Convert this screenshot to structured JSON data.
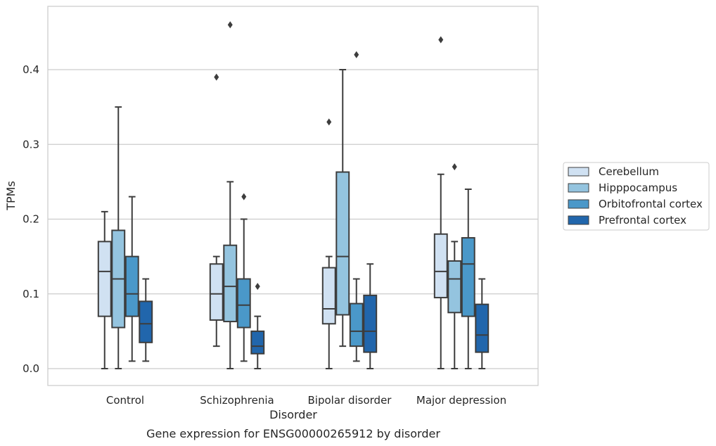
{
  "chart_data": {
    "type": "box",
    "xlabel": "Disorder",
    "ylabel": "TPMs",
    "caption": "Gene expression for ENSG00000265912 by disorder",
    "ylim": [
      -0.022,
      0.483
    ],
    "yticks": [
      0.0,
      0.1,
      0.2,
      0.3,
      0.4
    ],
    "ytick_labels": [
      "0.0",
      "0.1",
      "0.2",
      "0.3",
      "0.4"
    ],
    "grid": "horizontal",
    "legend_position": "right",
    "categories": [
      "Control",
      "Schizophrenia",
      "Bipolar disorder",
      "Major depression"
    ],
    "series": [
      {
        "name": "Cerebellum",
        "color": "#d0e1f2",
        "boxes": [
          {
            "whislo": 0.0,
            "q1": 0.07,
            "med": 0.13,
            "q3": 0.17,
            "whishi": 0.21,
            "fliers": []
          },
          {
            "whislo": 0.03,
            "q1": 0.065,
            "med": 0.1,
            "q3": 0.14,
            "whishi": 0.15,
            "fliers": [
              0.39
            ]
          },
          {
            "whislo": 0.0,
            "q1": 0.06,
            "med": 0.08,
            "q3": 0.135,
            "whishi": 0.15,
            "fliers": [
              0.33
            ]
          },
          {
            "whislo": 0.0,
            "q1": 0.095,
            "med": 0.13,
            "q3": 0.18,
            "whishi": 0.26,
            "fliers": [
              0.44
            ]
          }
        ]
      },
      {
        "name": "Hipppocampus",
        "color": "#94c4df",
        "boxes": [
          {
            "whislo": 0.0,
            "q1": 0.055,
            "med": 0.12,
            "q3": 0.185,
            "whishi": 0.35,
            "fliers": []
          },
          {
            "whislo": 0.0,
            "q1": 0.063,
            "med": 0.11,
            "q3": 0.165,
            "whishi": 0.25,
            "fliers": [
              0.46
            ]
          },
          {
            "whislo": 0.03,
            "q1": 0.072,
            "med": 0.15,
            "q3": 0.263,
            "whishi": 0.4,
            "fliers": []
          },
          {
            "whislo": 0.0,
            "q1": 0.075,
            "med": 0.12,
            "q3": 0.144,
            "whishi": 0.17,
            "fliers": [
              0.27
            ]
          }
        ]
      },
      {
        "name": "Orbitofrontal cortex",
        "color": "#4a98c9",
        "boxes": [
          {
            "whislo": 0.01,
            "q1": 0.07,
            "med": 0.1,
            "q3": 0.15,
            "whishi": 0.23,
            "fliers": []
          },
          {
            "whislo": 0.01,
            "q1": 0.055,
            "med": 0.085,
            "q3": 0.12,
            "whishi": 0.2,
            "fliers": [
              0.23
            ]
          },
          {
            "whislo": 0.01,
            "q1": 0.03,
            "med": 0.05,
            "q3": 0.087,
            "whishi": 0.12,
            "fliers": [
              0.42
            ]
          },
          {
            "whislo": 0.0,
            "q1": 0.07,
            "med": 0.14,
            "q3": 0.175,
            "whishi": 0.24,
            "fliers": []
          }
        ]
      },
      {
        "name": "Prefrontal cortex",
        "color": "#2166ac",
        "boxes": [
          {
            "whislo": 0.01,
            "q1": 0.035,
            "med": 0.06,
            "q3": 0.09,
            "whishi": 0.12,
            "fliers": []
          },
          {
            "whislo": 0.0,
            "q1": 0.02,
            "med": 0.03,
            "q3": 0.05,
            "whishi": 0.07,
            "fliers": [
              0.11
            ]
          },
          {
            "whislo": 0.0,
            "q1": 0.022,
            "med": 0.05,
            "q3": 0.098,
            "whishi": 0.14,
            "fliers": []
          },
          {
            "whislo": 0.0,
            "q1": 0.022,
            "med": 0.045,
            "q3": 0.086,
            "whishi": 0.12,
            "fliers": []
          }
        ]
      }
    ]
  }
}
